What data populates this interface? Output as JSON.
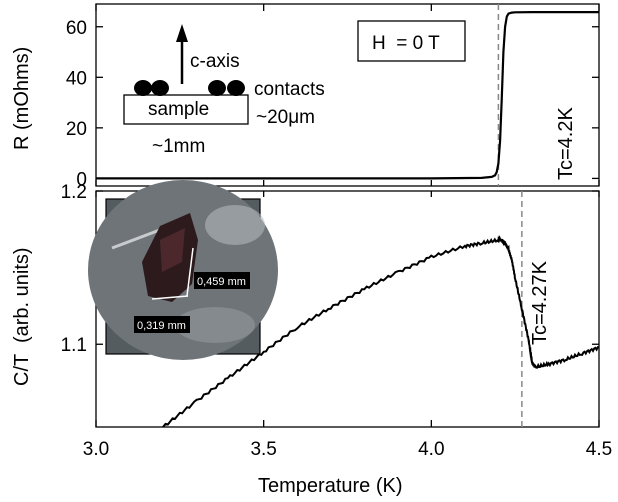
{
  "chart_data": [
    {
      "type": "line",
      "panel": "top",
      "ylabel": "R (mOhms)",
      "xlim": [
        3.0,
        4.5
      ],
      "ylim": [
        -3,
        69
      ],
      "yticks": [
        0,
        20,
        40,
        60
      ],
      "ytick_labels": [
        "0",
        "20",
        "40",
        "60"
      ],
      "grid": false,
      "legend": "none",
      "series": [
        {
          "x": [
            3.0,
            3.5,
            4.0,
            4.15,
            4.18,
            4.19,
            4.195,
            4.2,
            4.205,
            4.21,
            4.215,
            4.22,
            4.225,
            4.23,
            4.24,
            4.25,
            4.3,
            4.4,
            4.5
          ],
          "values": [
            0,
            0,
            0,
            0.2,
            0.6,
            1.2,
            2.5,
            6,
            15,
            32,
            50,
            60,
            64,
            65.2,
            65.6,
            65.7,
            65.8,
            65.8,
            65.8
          ]
        }
      ],
      "vlines": [
        4.2
      ],
      "annotations": {
        "field_box": "H  = 0 T",
        "tc": "Tc=4.2K",
        "schematic_axis": "c-axis",
        "schematic_contacts": "contacts",
        "schematic_sample": "sample",
        "schematic_thickness": "~20μm",
        "schematic_width": "~1mm"
      }
    },
    {
      "type": "line",
      "panel": "bottom",
      "xlabel": "Temperature (K)",
      "ylabel": "C/T  (arb. units)",
      "xlim": [
        3.0,
        4.5
      ],
      "ylim": [
        1.046,
        1.2
      ],
      "xticks": [
        3.0,
        3.5,
        4.0,
        4.5
      ],
      "xtick_labels": [
        "3.0",
        "3.5",
        "4.0",
        "4.5"
      ],
      "yticks": [
        1.1,
        1.2
      ],
      "ytick_labels": [
        "1.1",
        "1.2"
      ],
      "grid": false,
      "legend": "none",
      "series": [
        {
          "x": [
            3.2,
            3.3,
            3.4,
            3.5,
            3.6,
            3.7,
            3.8,
            3.9,
            4.0,
            4.1,
            4.15,
            4.2,
            4.21,
            4.22,
            4.23,
            4.24,
            4.25,
            4.27,
            4.29,
            4.3,
            4.31,
            4.35,
            4.4,
            4.45,
            4.5
          ],
          "values": [
            1.046,
            1.063,
            1.079,
            1.095,
            1.111,
            1.124,
            1.136,
            1.147,
            1.157,
            1.164,
            1.166,
            1.168,
            1.168,
            1.166,
            1.162,
            1.155,
            1.143,
            1.123,
            1.103,
            1.088,
            1.085,
            1.087,
            1.09,
            1.094,
            1.098
          ]
        }
      ],
      "vlines": [
        4.27
      ],
      "annotations": {
        "tc": "Tc=4.27K",
        "inset_dim_1": "0,459 mm",
        "inset_dim_2": "0,319 mm"
      }
    }
  ]
}
